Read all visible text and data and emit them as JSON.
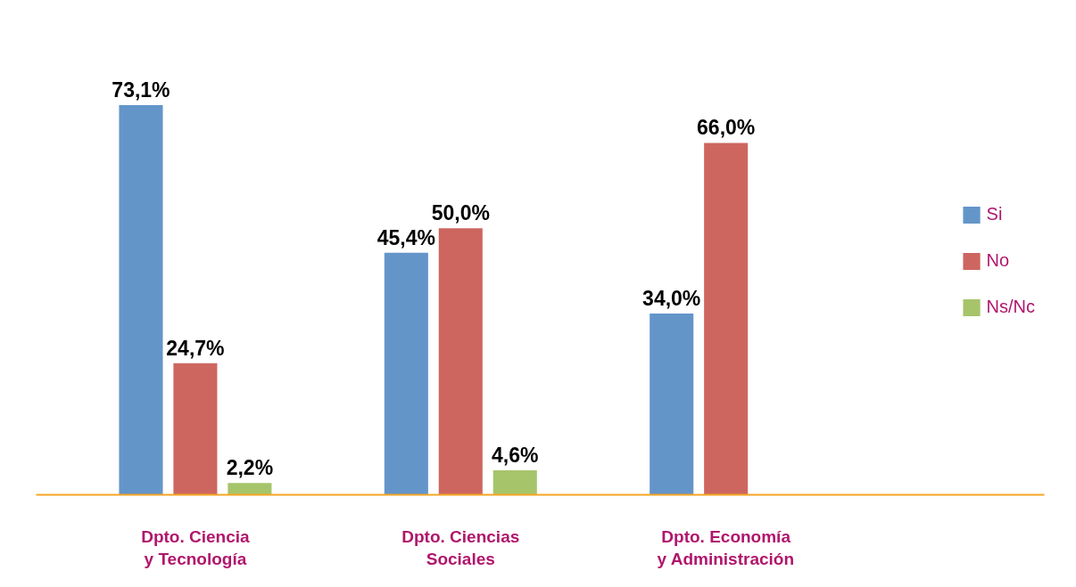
{
  "chart_data": {
    "type": "bar",
    "categories": [
      "Dpto. Ciencia\ny Tecnología",
      "Dpto. Ciencias\nSociales",
      "Dpto. Economía\ny Administración"
    ],
    "series": [
      {
        "name": "Si",
        "color": "#6495c9",
        "values": [
          73.1,
          45.4,
          34.0
        ],
        "value_labels": [
          "73,1%",
          "45,4%",
          "34,0%"
        ]
      },
      {
        "name": "No",
        "color": "#cd665f",
        "values": [
          24.7,
          50.0,
          66.0
        ],
        "value_labels": [
          "24,7%",
          "50,0%",
          "66,0%"
        ]
      },
      {
        "name": "Ns/Nc",
        "color": "#a6c46a",
        "values": [
          2.2,
          4.6,
          null
        ],
        "value_labels": [
          "2,2%",
          "4,6%",
          null
        ]
      }
    ],
    "legend": "right",
    "grid": false
  }
}
